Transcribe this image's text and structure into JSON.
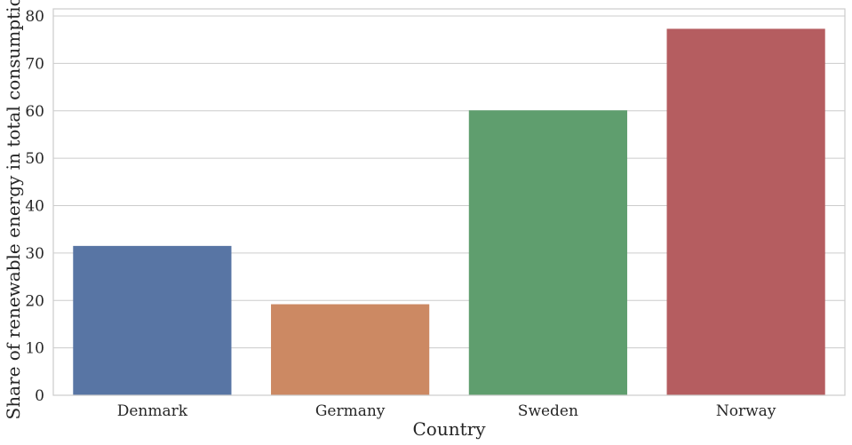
{
  "chart_data": {
    "type": "bar",
    "title": "",
    "xlabel": "Country",
    "ylabel": "Share of renewable energy in total consumption",
    "categories": [
      "Denmark",
      "Germany",
      "Sweden",
      "Norway"
    ],
    "values": [
      31.5,
      19.2,
      60.1,
      77.3
    ],
    "colors": [
      "#5875a4",
      "#cc8963",
      "#5f9e6e",
      "#b55d60"
    ],
    "ylim": [
      0,
      81.5
    ],
    "yticks": [
      0,
      10,
      20,
      30,
      40,
      50,
      60,
      70,
      80
    ],
    "grid": true,
    "grid_color": "#cccccc",
    "legend": "none"
  }
}
